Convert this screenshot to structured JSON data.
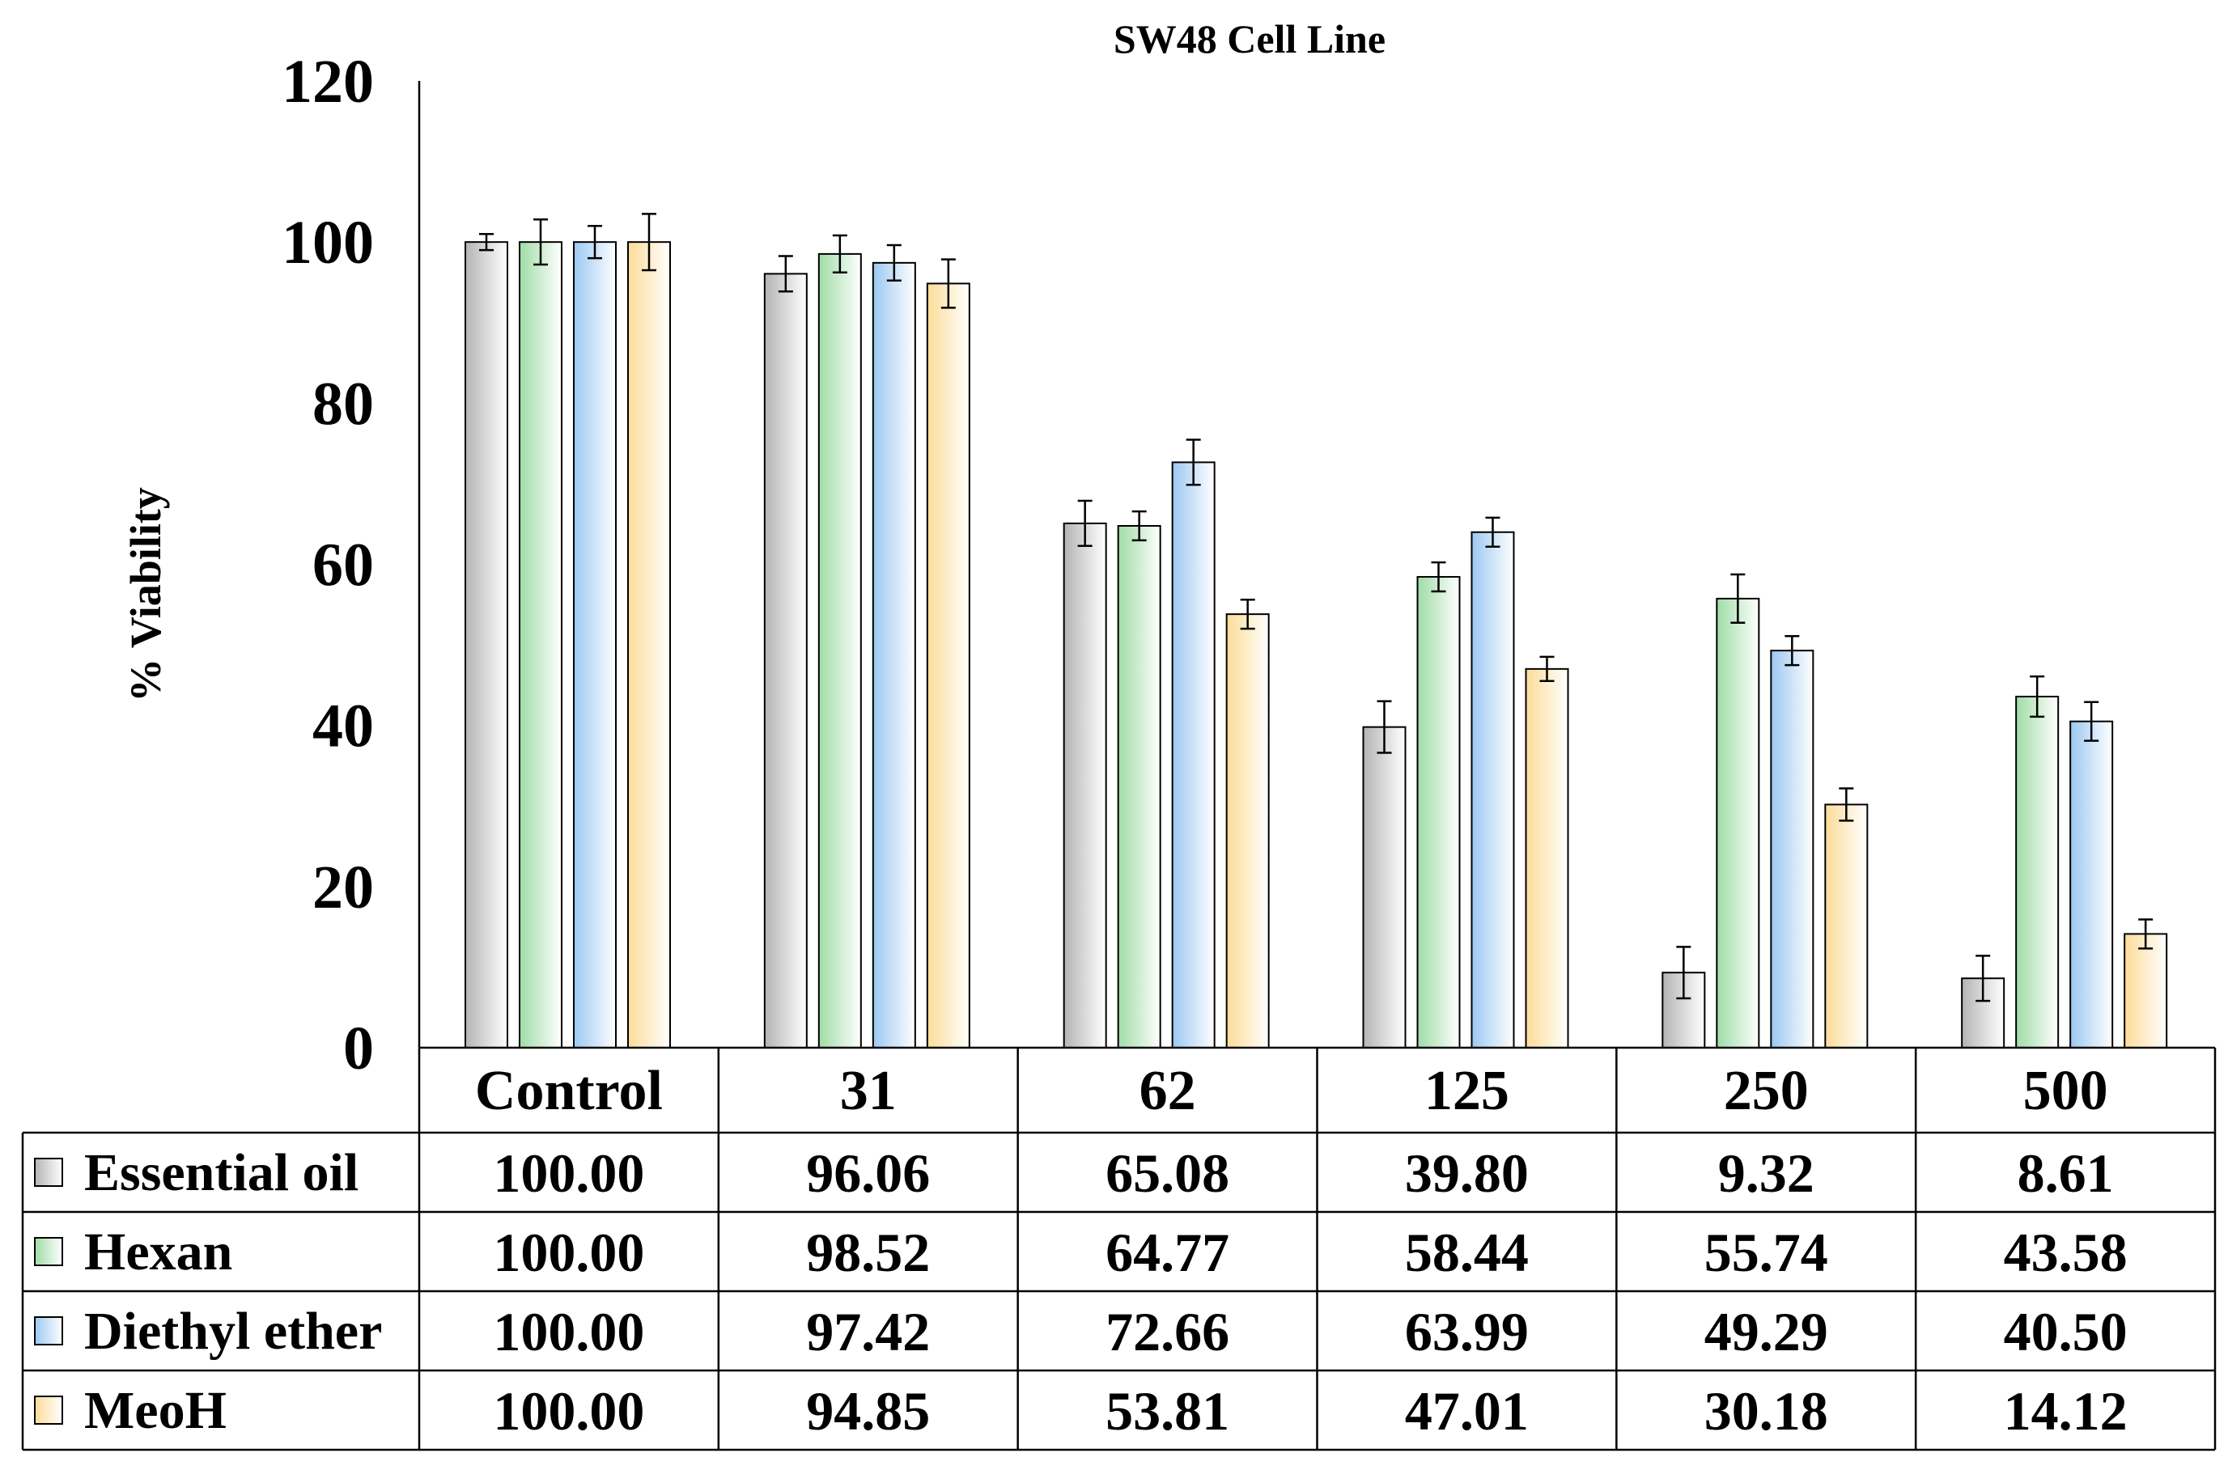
{
  "chart_data": {
    "type": "bar",
    "title": "SW48 Cell Line",
    "xlabel": "",
    "ylabel": "% Viability",
    "ylim": [
      0,
      120
    ],
    "yticks": [
      0,
      20,
      40,
      60,
      80,
      100,
      120
    ],
    "categories": [
      "Control",
      "31",
      "62",
      "125",
      "250",
      "500"
    ],
    "series": [
      {
        "name": "Essential oil",
        "color": "#b4b4b4",
        "values": [
          100.0,
          96.06,
          65.08,
          39.8,
          9.32,
          8.61
        ],
        "labels": [
          "100.00",
          "96.06",
          "65.08",
          "39.80",
          "9.32",
          "8.61"
        ],
        "errors": [
          1.0,
          2.2,
          2.8,
          3.2,
          3.2,
          2.8
        ]
      },
      {
        "name": "Hexan",
        "color": "#9fdca6",
        "values": [
          100.0,
          98.52,
          64.77,
          58.44,
          55.74,
          43.58
        ],
        "labels": [
          "100.00",
          "98.52",
          "64.77",
          "58.44",
          "55.74",
          "43.58"
        ],
        "errors": [
          2.8,
          2.3,
          1.8,
          1.8,
          3.0,
          2.5
        ]
      },
      {
        "name": "Diethyl ether",
        "color": "#9cc8f2",
        "values": [
          100.0,
          97.42,
          72.66,
          63.99,
          49.29,
          40.5
        ],
        "labels": [
          "100.00",
          "97.42",
          "72.66",
          "63.99",
          "49.29",
          "40.50"
        ],
        "errors": [
          2.0,
          2.2,
          2.8,
          1.8,
          1.8,
          2.4
        ]
      },
      {
        "name": "MeoH",
        "color": "#fcdc98",
        "values": [
          100.0,
          94.85,
          53.81,
          47.01,
          30.18,
          14.12
        ],
        "labels": [
          "100.00",
          "94.85",
          "53.81",
          "47.01",
          "30.18",
          "14.12"
        ],
        "errors": [
          3.5,
          3.0,
          1.8,
          1.5,
          2.0,
          1.8
        ]
      }
    ],
    "legend": "data-table"
  }
}
